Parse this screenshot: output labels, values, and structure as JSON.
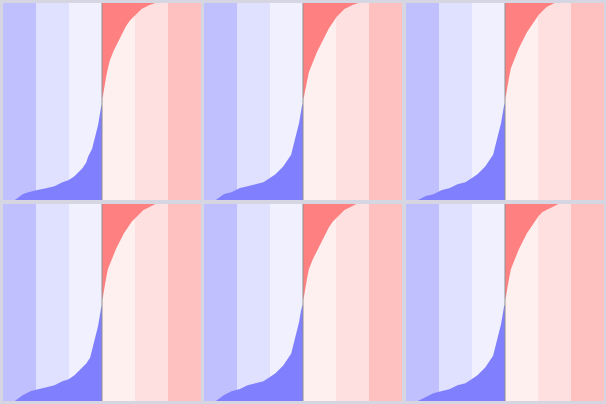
{
  "chart_data": {
    "type": "area",
    "layout": {
      "rows": 2,
      "cols": 3
    },
    "x_range": [
      0,
      1
    ],
    "y_range": [
      0,
      1
    ],
    "divider_x": 0.5,
    "band_edges": [
      0,
      0.1667,
      0.3333,
      0.5,
      0.6667,
      0.8333,
      1
    ],
    "band_colors": [
      "#c0c0ff",
      "#e0e0ff",
      "#f0f0ff",
      "#fff0f0",
      "#ffe0e0",
      "#ffc0c0"
    ],
    "fill_colors": {
      "below": "#8080ff",
      "above": "#ff8080"
    },
    "panels": [
      {
        "name": "panel-1",
        "x": [
          0,
          0.06,
          0.1,
          0.13,
          0.17,
          0.22,
          0.26,
          0.3,
          0.33,
          0.36,
          0.38,
          0.4,
          0.42,
          0.43,
          0.45,
          0.46,
          0.47,
          0.48,
          0.485,
          0.49,
          0.495,
          0.5,
          0.51,
          0.52,
          0.53,
          0.54,
          0.56,
          0.58,
          0.6,
          0.62,
          0.64,
          0.66,
          0.68,
          0.7,
          0.72,
          0.74,
          0.77,
          0.8,
          0.83,
          0.87,
          0.91,
          0.95,
          1.0
        ],
        "y": [
          0,
          0,
          0.03,
          0.04,
          0.05,
          0.06,
          0.07,
          0.09,
          0.1,
          0.12,
          0.14,
          0.16,
          0.19,
          0.22,
          0.26,
          0.3,
          0.34,
          0.38,
          0.41,
          0.44,
          0.47,
          0.5,
          0.56,
          0.62,
          0.67,
          0.71,
          0.76,
          0.8,
          0.84,
          0.88,
          0.91,
          0.93,
          0.95,
          0.97,
          0.98,
          0.99,
          1,
          1,
          1,
          1,
          1,
          1,
          1
        ]
      },
      {
        "name": "panel-2",
        "x": [
          0,
          0.06,
          0.1,
          0.14,
          0.18,
          0.22,
          0.26,
          0.3,
          0.33,
          0.36,
          0.38,
          0.4,
          0.42,
          0.44,
          0.45,
          0.46,
          0.47,
          0.48,
          0.485,
          0.49,
          0.495,
          0.5,
          0.51,
          0.52,
          0.53,
          0.55,
          0.57,
          0.59,
          0.61,
          0.63,
          0.65,
          0.67,
          0.69,
          0.71,
          0.73,
          0.75,
          0.78,
          0.81,
          0.85,
          0.89,
          0.93,
          0.97,
          1.0
        ],
        "y": [
          0,
          0,
          0.03,
          0.04,
          0.06,
          0.07,
          0.08,
          0.09,
          0.11,
          0.13,
          0.15,
          0.17,
          0.2,
          0.23,
          0.27,
          0.31,
          0.35,
          0.39,
          0.42,
          0.45,
          0.48,
          0.5,
          0.55,
          0.6,
          0.65,
          0.7,
          0.75,
          0.79,
          0.83,
          0.87,
          0.9,
          0.93,
          0.95,
          0.97,
          0.98,
          0.99,
          1,
          1,
          1,
          1,
          1,
          1,
          1
        ]
      },
      {
        "name": "panel-3",
        "x": [
          0,
          0.06,
          0.1,
          0.14,
          0.18,
          0.22,
          0.26,
          0.3,
          0.33,
          0.36,
          0.38,
          0.4,
          0.42,
          0.44,
          0.45,
          0.46,
          0.47,
          0.48,
          0.485,
          0.49,
          0.495,
          0.5,
          0.51,
          0.52,
          0.53,
          0.55,
          0.57,
          0.59,
          0.61,
          0.63,
          0.65,
          0.67,
          0.69,
          0.71,
          0.73,
          0.75,
          0.77,
          0.8,
          0.84,
          0.88,
          0.92,
          0.96,
          1.0
        ],
        "y": [
          0,
          0,
          0.02,
          0.03,
          0.05,
          0.06,
          0.08,
          0.09,
          0.11,
          0.13,
          0.15,
          0.17,
          0.2,
          0.23,
          0.27,
          0.31,
          0.35,
          0.39,
          0.42,
          0.45,
          0.48,
          0.5,
          0.56,
          0.62,
          0.67,
          0.72,
          0.77,
          0.81,
          0.85,
          0.88,
          0.91,
          0.94,
          0.96,
          0.98,
          0.99,
          1,
          1,
          1,
          1,
          1,
          1,
          1,
          1
        ]
      },
      {
        "name": "panel-4",
        "x": [
          0,
          0.06,
          0.1,
          0.14,
          0.18,
          0.22,
          0.26,
          0.3,
          0.33,
          0.36,
          0.38,
          0.4,
          0.42,
          0.44,
          0.45,
          0.46,
          0.47,
          0.48,
          0.485,
          0.49,
          0.495,
          0.5,
          0.51,
          0.52,
          0.53,
          0.55,
          0.57,
          0.59,
          0.61,
          0.63,
          0.65,
          0.67,
          0.69,
          0.71,
          0.73,
          0.75,
          0.77,
          0.8,
          0.84,
          0.88,
          0.92,
          0.96,
          1.0
        ],
        "y": [
          0,
          0,
          0.03,
          0.05,
          0.06,
          0.07,
          0.08,
          0.1,
          0.11,
          0.13,
          0.15,
          0.17,
          0.19,
          0.22,
          0.26,
          0.3,
          0.34,
          0.38,
          0.41,
          0.44,
          0.47,
          0.5,
          0.56,
          0.62,
          0.67,
          0.72,
          0.77,
          0.81,
          0.85,
          0.88,
          0.91,
          0.93,
          0.95,
          0.97,
          0.98,
          0.99,
          1,
          1,
          1,
          1,
          1,
          1,
          1
        ]
      },
      {
        "name": "panel-5",
        "x": [
          0,
          0.06,
          0.1,
          0.14,
          0.18,
          0.22,
          0.26,
          0.3,
          0.33,
          0.36,
          0.38,
          0.4,
          0.42,
          0.44,
          0.45,
          0.46,
          0.47,
          0.48,
          0.485,
          0.49,
          0.495,
          0.5,
          0.51,
          0.52,
          0.53,
          0.55,
          0.57,
          0.59,
          0.61,
          0.63,
          0.65,
          0.67,
          0.69,
          0.71,
          0.73,
          0.75,
          0.77,
          0.8,
          0.84,
          0.88,
          0.92,
          0.96,
          1.0
        ],
        "y": [
          0,
          0,
          0.03,
          0.05,
          0.06,
          0.08,
          0.09,
          0.1,
          0.12,
          0.14,
          0.16,
          0.18,
          0.21,
          0.24,
          0.28,
          0.32,
          0.36,
          0.4,
          0.43,
          0.46,
          0.48,
          0.5,
          0.56,
          0.62,
          0.67,
          0.72,
          0.76,
          0.8,
          0.84,
          0.88,
          0.91,
          0.93,
          0.95,
          0.97,
          0.98,
          0.99,
          1,
          1,
          1,
          1,
          1,
          1,
          1
        ]
      },
      {
        "name": "panel-6",
        "x": [
          0,
          0.06,
          0.1,
          0.14,
          0.18,
          0.22,
          0.26,
          0.3,
          0.33,
          0.36,
          0.38,
          0.4,
          0.42,
          0.44,
          0.45,
          0.46,
          0.47,
          0.48,
          0.485,
          0.49,
          0.495,
          0.5,
          0.51,
          0.52,
          0.53,
          0.55,
          0.57,
          0.59,
          0.61,
          0.63,
          0.65,
          0.67,
          0.69,
          0.71,
          0.73,
          0.75,
          0.77,
          0.8,
          0.84,
          0.88,
          0.92,
          0.96,
          1.0
        ],
        "y": [
          0,
          0,
          0.02,
          0.04,
          0.05,
          0.06,
          0.08,
          0.09,
          0.11,
          0.13,
          0.15,
          0.17,
          0.2,
          0.23,
          0.27,
          0.31,
          0.35,
          0.39,
          0.42,
          0.45,
          0.48,
          0.5,
          0.56,
          0.62,
          0.67,
          0.72,
          0.77,
          0.81,
          0.85,
          0.88,
          0.91,
          0.94,
          0.96,
          0.97,
          0.98,
          0.99,
          1,
          1,
          1,
          1,
          1,
          1,
          1
        ]
      }
    ]
  }
}
